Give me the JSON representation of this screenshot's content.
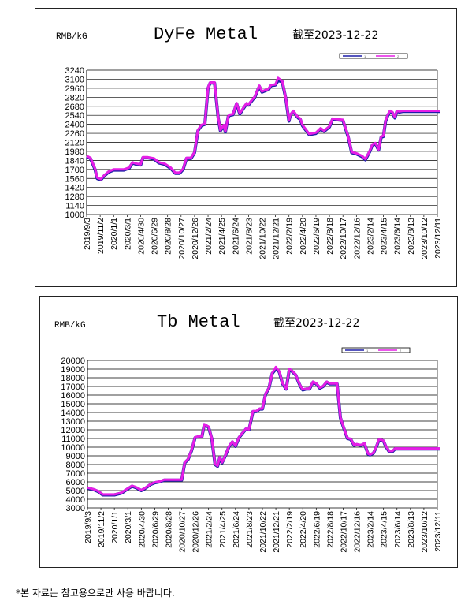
{
  "footer": {
    "disclaimer": "*본 자료는 참고용으로만 사용 바랍니다."
  },
  "chart_data": [
    {
      "type": "line",
      "title": "DyFe Metal",
      "unit_label": "RMB/kG",
      "date_note": "截至2023-12-22",
      "legend": [
        "1",
        "2"
      ],
      "legend_position": "top-right",
      "grid": true,
      "ylim": [
        1000,
        3240
      ],
      "y_ticks": [
        1000,
        1140,
        1280,
        1420,
        1560,
        1700,
        1840,
        1980,
        2120,
        2260,
        2400,
        2540,
        2680,
        2820,
        2960,
        3100,
        3240
      ],
      "x_ticks": [
        "2019/9/3",
        "2019/11/2",
        "2020/1/1",
        "2020/3/1",
        "2020/4/30",
        "2020/6/29",
        "2020/8/28",
        "2020/10/27",
        "2020/12/26",
        "2021/2/24",
        "2021/4/25",
        "2021/6/24",
        "2021/8/23",
        "2021/10/22",
        "2021/12/21",
        "2022/2/19",
        "2022/4/20",
        "2022/6/19",
        "2022/8/18",
        "2022/10/17",
        "2022/12/16",
        "2023/2/14",
        "2023/4/15",
        "2023/6/14",
        "2023/8/13",
        "2023/10/12",
        "2023/12/11"
      ],
      "x": [
        "2019-09-03",
        "2019-09-20",
        "2019-10-10",
        "2019-10-20",
        "2019-11-05",
        "2019-11-20",
        "2019-12-10",
        "2020-01-01",
        "2020-02-15",
        "2020-03-10",
        "2020-03-25",
        "2020-04-10",
        "2020-04-30",
        "2020-05-10",
        "2020-06-01",
        "2020-06-29",
        "2020-07-20",
        "2020-08-15",
        "2020-09-10",
        "2020-10-01",
        "2020-10-20",
        "2020-11-05",
        "2020-11-20",
        "2020-12-10",
        "2020-12-26",
        "2021-01-10",
        "2021-01-25",
        "2021-02-10",
        "2021-02-24",
        "2021-03-05",
        "2021-03-25",
        "2021-04-10",
        "2021-04-20",
        "2021-05-05",
        "2021-05-12",
        "2021-05-25",
        "2021-06-01",
        "2021-06-15",
        "2021-07-01",
        "2021-07-15",
        "2021-08-01",
        "2021-08-15",
        "2021-08-23",
        "2021-09-10",
        "2021-09-20",
        "2021-10-10",
        "2021-10-22",
        "2021-11-05",
        "2021-11-20",
        "2021-12-01",
        "2021-12-21",
        "2022-01-01",
        "2022-01-20",
        "2022-02-05",
        "2022-02-19",
        "2022-02-25",
        "2022-03-10",
        "2022-03-20",
        "2022-04-01",
        "2022-04-10",
        "2022-04-20",
        "2022-05-20",
        "2022-06-19",
        "2022-07-10",
        "2022-07-25",
        "2022-08-18",
        "2022-09-01",
        "2022-09-20",
        "2022-10-17",
        "2022-11-10",
        "2022-11-25",
        "2022-12-16",
        "2023-01-10",
        "2023-01-25",
        "2023-02-14",
        "2023-02-25",
        "2023-03-10",
        "2023-03-25",
        "2023-04-05",
        "2023-04-15",
        "2023-04-25",
        "2023-05-05",
        "2023-05-15",
        "2023-05-25",
        "2023-06-05",
        "2023-06-14",
        "2023-06-25",
        "2023-07-10",
        "2023-07-25",
        "2023-08-13",
        "2023-08-25",
        "2023-09-10",
        "2023-09-25",
        "2023-10-12",
        "2023-10-25",
        "2023-11-10",
        "2023-11-20",
        "2023-12-11",
        "2023-12-22"
      ],
      "series": [
        {
          "name": "1",
          "color": "#1f1fa8",
          "values": [
            1900,
            1870,
            1700,
            1560,
            1540,
            1600,
            1660,
            1690,
            1690,
            1720,
            1800,
            1780,
            1770,
            1880,
            1880,
            1860,
            1800,
            1780,
            1720,
            1640,
            1640,
            1700,
            1870,
            1870,
            1960,
            2300,
            2380,
            2400,
            2960,
            3040,
            3040,
            2500,
            2300,
            2380,
            2280,
            2520,
            2540,
            2550,
            2720,
            2560,
            2650,
            2720,
            2700,
            2780,
            2820,
            2990,
            2900,
            2920,
            2940,
            3000,
            3010,
            3080,
            3060,
            2800,
            2450,
            2540,
            2600,
            2550,
            2500,
            2480,
            2380,
            2240,
            2260,
            2330,
            2290,
            2360,
            2480,
            2470,
            2460,
            2200,
            1960,
            1940,
            1900,
            1850,
            1980,
            2080,
            2100,
            2000,
            2200,
            2210,
            2450,
            2540,
            2600,
            2580,
            2500,
            2600,
            2590,
            2600,
            2600,
            2600,
            2600,
            2600,
            2600,
            2600,
            2600,
            2600,
            2600,
            2600,
            2600
          ]
        },
        {
          "name": "2",
          "color": "#e61ee6",
          "values": [
            1910,
            1880,
            1710,
            1570,
            1550,
            1610,
            1670,
            1700,
            1700,
            1730,
            1810,
            1790,
            1780,
            1890,
            1890,
            1870,
            1810,
            1790,
            1730,
            1650,
            1650,
            1710,
            1880,
            1880,
            1970,
            2310,
            2390,
            2410,
            2970,
            3050,
            3050,
            2510,
            2310,
            2390,
            2290,
            2530,
            2550,
            2560,
            2730,
            2570,
            2660,
            2730,
            2710,
            2790,
            2830,
            3000,
            2910,
            2930,
            2950,
            3010,
            3020,
            3120,
            3070,
            2810,
            2460,
            2550,
            2610,
            2560,
            2510,
            2490,
            2390,
            2250,
            2270,
            2340,
            2300,
            2370,
            2490,
            2480,
            2470,
            2210,
            1970,
            1950,
            1910,
            1860,
            1990,
            2090,
            2110,
            2010,
            2210,
            2220,
            2460,
            2550,
            2610,
            2590,
            2510,
            2610,
            2600,
            2610,
            2610,
            2610,
            2610,
            2610,
            2610,
            2610,
            2610,
            2610,
            2610,
            2610,
            2610
          ]
        }
      ]
    },
    {
      "type": "line",
      "title": "Tb Metal",
      "unit_label": "RMB/kG",
      "date_note": "截至2023-12-22",
      "legend": [
        "1",
        "2"
      ],
      "legend_position": "top-right",
      "grid": true,
      "ylim": [
        3000,
        20000
      ],
      "y_ticks": [
        3000,
        4000,
        5000,
        6000,
        7000,
        8000,
        9000,
        10000,
        11000,
        12000,
        13000,
        14000,
        15000,
        16000,
        17000,
        18000,
        19000,
        20000
      ],
      "x_ticks": [
        "2019/9/3",
        "2019/11/2",
        "2020/1/1",
        "2020/3/1",
        "2020/4/30",
        "2020/6/29",
        "2020/8/28",
        "2020/10/27",
        "2020/12/26",
        "2021/2/24",
        "2021/4/25",
        "2021/6/24",
        "2021/8/23",
        "2021/10/22",
        "2021/12/21",
        "2022/2/19",
        "2022/4/20",
        "2022/6/19",
        "2022/8/18",
        "2022/10/17",
        "2022/12/16",
        "2023/2/14",
        "2023/4/15",
        "2023/6/14",
        "2023/8/13",
        "2023/10/12",
        "2023/12/11"
      ],
      "x": [
        "2019-09-03",
        "2019-10-01",
        "2019-10-20",
        "2019-11-10",
        "2019-12-01",
        "2020-01-01",
        "2020-02-01",
        "2020-03-01",
        "2020-03-20",
        "2020-04-10",
        "2020-04-30",
        "2020-05-20",
        "2020-06-10",
        "2020-06-29",
        "2020-07-20",
        "2020-08-10",
        "2020-08-28",
        "2020-09-20",
        "2020-10-10",
        "2020-10-27",
        "2020-11-10",
        "2020-11-25",
        "2020-12-10",
        "2020-12-26",
        "2021-01-10",
        "2021-01-25",
        "2021-02-05",
        "2021-02-24",
        "2021-03-10",
        "2021-03-25",
        "2021-04-05",
        "2021-04-15",
        "2021-04-25",
        "2021-05-10",
        "2021-05-25",
        "2021-06-10",
        "2021-06-24",
        "2021-07-10",
        "2021-07-25",
        "2021-08-10",
        "2021-08-23",
        "2021-09-10",
        "2021-09-25",
        "2021-10-10",
        "2021-10-22",
        "2021-11-05",
        "2021-11-20",
        "2021-12-05",
        "2021-12-21",
        "2022-01-05",
        "2022-01-20",
        "2022-02-05",
        "2022-02-19",
        "2022-03-05",
        "2022-03-20",
        "2022-04-01",
        "2022-04-10",
        "2022-04-20",
        "2022-05-05",
        "2022-05-20",
        "2022-06-05",
        "2022-06-19",
        "2022-07-05",
        "2022-07-20",
        "2022-08-05",
        "2022-08-18",
        "2022-09-05",
        "2022-09-20",
        "2022-10-05",
        "2022-10-17",
        "2022-11-05",
        "2022-11-20",
        "2022-12-05",
        "2022-12-16",
        "2023-01-05",
        "2023-01-20",
        "2023-02-05",
        "2023-02-14",
        "2023-03-01",
        "2023-03-15",
        "2023-03-25",
        "2023-04-05",
        "2023-04-15",
        "2023-04-25",
        "2023-05-10",
        "2023-05-25",
        "2023-06-05",
        "2023-06-14",
        "2023-06-25",
        "2023-07-10",
        "2023-07-25",
        "2023-08-13",
        "2023-08-25",
        "2023-09-10",
        "2023-09-25",
        "2023-10-12",
        "2023-10-25",
        "2023-11-10",
        "2023-11-20",
        "2023-12-01",
        "2023-12-11",
        "2023-12-22"
      ],
      "series": [
        {
          "name": "1",
          "color": "#1f1fa8",
          "values": [
            5300,
            5100,
            4900,
            4500,
            4500,
            4500,
            4700,
            5200,
            5500,
            5300,
            5000,
            5300,
            5700,
            5900,
            6000,
            6200,
            6200,
            6200,
            6200,
            6200,
            8200,
            8600,
            9600,
            11100,
            11200,
            11200,
            12600,
            12300,
            11000,
            8000,
            7800,
            8800,
            8200,
            9000,
            10000,
            10600,
            10100,
            11100,
            11600,
            12100,
            12000,
            14100,
            14100,
            14400,
            14400,
            16100,
            16800,
            18500,
            19000,
            18700,
            17300,
            16700,
            19000,
            18700,
            18300,
            17500,
            17000,
            16600,
            16700,
            16700,
            17500,
            17300,
            16800,
            17000,
            17500,
            17300,
            17300,
            17300,
            13400,
            12400,
            11000,
            10900,
            10200,
            10300,
            10200,
            10400,
            9200,
            9100,
            9300,
            10100,
            10800,
            10800,
            10700,
            10100,
            9500,
            9500,
            9800,
            9800,
            9800,
            9800,
            9800,
            9800,
            9800,
            9800,
            9800,
            9800,
            9800,
            9800,
            9800,
            9800,
            9800,
            9800
          ]
        },
        {
          "name": "2",
          "color": "#e61ee6",
          "values": [
            5350,
            5150,
            4950,
            4550,
            4550,
            4550,
            4750,
            5250,
            5550,
            5350,
            5050,
            5350,
            5750,
            5950,
            6050,
            6250,
            6250,
            6250,
            6250,
            6250,
            8250,
            8650,
            9650,
            11150,
            11250,
            11250,
            12650,
            12350,
            11050,
            8050,
            7850,
            8850,
            8250,
            9050,
            10050,
            10650,
            10150,
            11150,
            11650,
            12150,
            12050,
            14150,
            14150,
            14450,
            14450,
            16150,
            16850,
            18550,
            19250,
            18750,
            17350,
            16750,
            19050,
            18750,
            18350,
            17550,
            17050,
            16650,
            16750,
            16750,
            17550,
            17350,
            16850,
            17050,
            17550,
            17350,
            17350,
            17350,
            13450,
            12450,
            11050,
            10950,
            10250,
            10350,
            10250,
            10450,
            9250,
            9150,
            9350,
            10150,
            10850,
            10850,
            10750,
            10150,
            9550,
            9550,
            9850,
            9850,
            9850,
            9850,
            9850,
            9850,
            9850,
            9850,
            9850,
            9850,
            9850,
            9850,
            9850,
            9850,
            9850,
            9850
          ]
        }
      ]
    }
  ]
}
